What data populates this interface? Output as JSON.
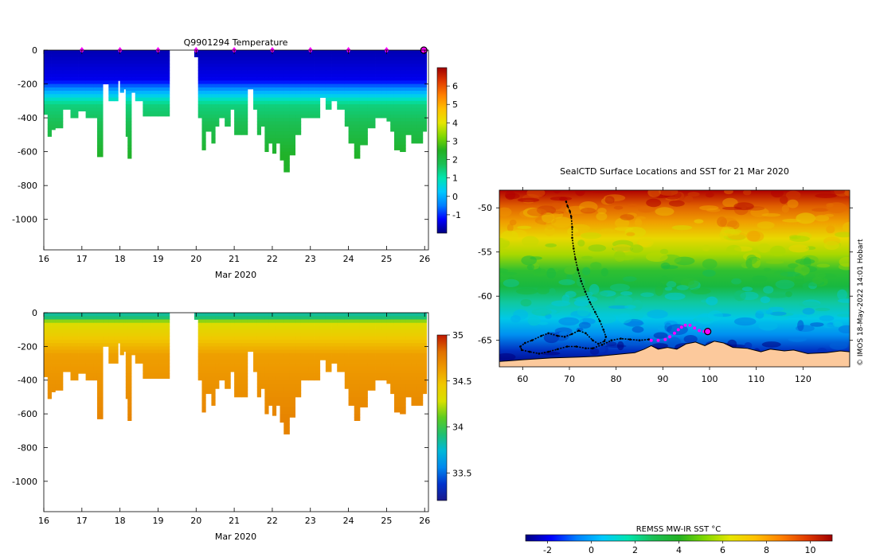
{
  "colors": {
    "background": "#ffffff",
    "land": "#fcc99c",
    "track": "#000000",
    "recent_track": "#ff00ff",
    "marker": "#ff00ff"
  },
  "chart_data": [
    {
      "type": "heatmap",
      "id": "temperature",
      "title": "Q9901294  Temperature",
      "xlabel": "Mar 2020",
      "ylabel": "",
      "xlim": [
        16,
        26.1
      ],
      "ylim": [
        -1180,
        0
      ],
      "xticks": [
        16,
        17,
        18,
        19,
        20,
        21,
        22,
        23,
        24,
        25,
        26
      ],
      "yticks": [
        0,
        -200,
        -400,
        -600,
        -800,
        -1000
      ],
      "variable": "temperature",
      "gap": [
        19.3,
        19.95
      ],
      "marker_days": [
        17,
        18,
        19,
        20,
        21,
        22,
        23,
        24,
        25
      ],
      "latest_marker_day": 26,
      "max_depths": [
        [
          16.0,
          -380
        ],
        [
          16.1,
          -510
        ],
        [
          16.2,
          -470
        ],
        [
          16.3,
          -460
        ],
        [
          16.5,
          -350
        ],
        [
          16.7,
          -400
        ],
        [
          16.9,
          -360
        ],
        [
          17.1,
          -400
        ],
        [
          17.3,
          -400
        ],
        [
          17.4,
          -630
        ],
        [
          17.55,
          -200
        ],
        [
          17.7,
          -300
        ],
        [
          17.85,
          -300
        ],
        [
          17.95,
          -180
        ],
        [
          18.0,
          -250
        ],
        [
          18.1,
          -230
        ],
        [
          18.15,
          -510
        ],
        [
          18.2,
          -640
        ],
        [
          18.3,
          -250
        ],
        [
          18.4,
          -300
        ],
        [
          18.6,
          -390
        ],
        [
          18.8,
          -390
        ],
        [
          19.0,
          -390
        ],
        [
          19.2,
          -390
        ],
        [
          19.95,
          -40
        ],
        [
          20.05,
          -400
        ],
        [
          20.15,
          -590
        ],
        [
          20.25,
          -480
        ],
        [
          20.4,
          -550
        ],
        [
          20.5,
          -450
        ],
        [
          20.6,
          -400
        ],
        [
          20.75,
          -450
        ],
        [
          20.9,
          -350
        ],
        [
          21.0,
          -500
        ],
        [
          21.2,
          -500
        ],
        [
          21.35,
          -230
        ],
        [
          21.5,
          -350
        ],
        [
          21.6,
          -500
        ],
        [
          21.7,
          -450
        ],
        [
          21.8,
          -600
        ],
        [
          21.9,
          -550
        ],
        [
          22.0,
          -610
        ],
        [
          22.1,
          -550
        ],
        [
          22.2,
          -650
        ],
        [
          22.3,
          -720
        ],
        [
          22.45,
          -620
        ],
        [
          22.6,
          -500
        ],
        [
          22.75,
          -400
        ],
        [
          22.95,
          -400
        ],
        [
          23.1,
          -400
        ],
        [
          23.25,
          -280
        ],
        [
          23.4,
          -350
        ],
        [
          23.55,
          -300
        ],
        [
          23.7,
          -350
        ],
        [
          23.9,
          -450
        ],
        [
          24.0,
          -550
        ],
        [
          24.15,
          -640
        ],
        [
          24.3,
          -560
        ],
        [
          24.5,
          -460
        ],
        [
          24.7,
          -400
        ],
        [
          24.85,
          -400
        ],
        [
          25.0,
          -420
        ],
        [
          25.1,
          -480
        ],
        [
          25.2,
          -590
        ],
        [
          25.35,
          -600
        ],
        [
          25.5,
          -500
        ],
        [
          25.65,
          -550
        ],
        [
          25.8,
          -550
        ],
        [
          25.95,
          -480
        ]
      ],
      "colorbar": {
        "min": -2,
        "max": 7,
        "ticks": [
          -1,
          0,
          1,
          2,
          3,
          4,
          5,
          6
        ]
      }
    },
    {
      "type": "heatmap",
      "id": "salinity",
      "title": "",
      "xlabel": "Mar 2020",
      "ylabel": "",
      "xlim": [
        16,
        26.1
      ],
      "ylim": [
        -1180,
        0
      ],
      "xticks": [
        16,
        17,
        18,
        19,
        20,
        21,
        22,
        23,
        24,
        25,
        26
      ],
      "yticks": [
        0,
        -200,
        -400,
        -600,
        -800,
        -1000
      ],
      "variable": "salinity",
      "gap": [
        19.3,
        19.95
      ],
      "colorbar": {
        "min": 33.2,
        "max": 35,
        "ticks": [
          33.5,
          34,
          34.5,
          35
        ]
      }
    },
    {
      "type": "scatter",
      "id": "map",
      "title": "SealCTD Surface Locations and SST for 21 Mar 2020",
      "xlabel": "",
      "ylabel": "",
      "xlim": [
        55,
        130
      ],
      "ylim": [
        -68,
        -48
      ],
      "xticks": [
        60,
        70,
        80,
        90,
        100,
        110,
        120
      ],
      "yticks": [
        -50,
        -55,
        -60,
        -65
      ],
      "track": [
        [
          69.3,
          -49.3
        ],
        [
          69.6,
          -49.8
        ],
        [
          70.1,
          -50.4
        ],
        [
          70.4,
          -51.0
        ],
        [
          70.6,
          -52.2
        ],
        [
          70.6,
          -53.4
        ],
        [
          70.9,
          -54.6
        ],
        [
          71.3,
          -55.8
        ],
        [
          71.8,
          -57.0
        ],
        [
          72.5,
          -58.3
        ],
        [
          73.4,
          -59.5
        ],
        [
          74.4,
          -60.7
        ],
        [
          75.5,
          -61.8
        ],
        [
          76.5,
          -62.8
        ],
        [
          77.3,
          -63.8
        ],
        [
          77.8,
          -64.6
        ],
        [
          77.5,
          -65.1
        ],
        [
          76.2,
          -65.4
        ],
        [
          75.0,
          -65.0
        ],
        [
          73.5,
          -64.2
        ],
        [
          72.0,
          -63.9
        ],
        [
          70.5,
          -64.3
        ],
        [
          69.0,
          -64.6
        ],
        [
          67.5,
          -64.5
        ],
        [
          65.5,
          -64.2
        ],
        [
          64.0,
          -64.5
        ],
        [
          62.0,
          -65.0
        ],
        [
          60.5,
          -65.3
        ],
        [
          59.5,
          -65.7
        ],
        [
          59.8,
          -66.1
        ],
        [
          61.5,
          -66.3
        ],
        [
          63.5,
          -66.5
        ],
        [
          65.5,
          -66.3
        ],
        [
          67.5,
          -66.0
        ],
        [
          69.5,
          -65.7
        ],
        [
          71.5,
          -65.7
        ],
        [
          73.5,
          -65.9
        ],
        [
          75.0,
          -65.9
        ],
        [
          77.0,
          -65.5
        ],
        [
          79.0,
          -65.0
        ],
        [
          81.0,
          -64.8
        ],
        [
          83.0,
          -64.9
        ],
        [
          85.0,
          -65.0
        ],
        [
          87.0,
          -64.9
        ]
      ],
      "recent_track": [
        [
          87.5,
          -65.0
        ],
        [
          89.0,
          -65.0
        ],
        [
          90.5,
          -64.9
        ],
        [
          91.5,
          -64.6
        ],
        [
          92.5,
          -64.2
        ],
        [
          93.3,
          -63.8
        ],
        [
          94.0,
          -63.5
        ],
        [
          94.8,
          -63.3
        ],
        [
          95.8,
          -63.3
        ],
        [
          96.8,
          -63.6
        ],
        [
          97.8,
          -63.9
        ],
        [
          98.8,
          -64.0
        ],
        [
          99.6,
          -64.0
        ]
      ],
      "latest_position": [
        99.6,
        -64.0
      ],
      "coastline": [
        [
          55,
          -67.4
        ],
        [
          60,
          -67.2
        ],
        [
          66,
          -67.0
        ],
        [
          72,
          -66.9
        ],
        [
          76,
          -66.8
        ],
        [
          80,
          -66.6
        ],
        [
          84,
          -66.4
        ],
        [
          86,
          -66.0
        ],
        [
          87.5,
          -65.6
        ],
        [
          89,
          -66.0
        ],
        [
          91,
          -65.8
        ],
        [
          93,
          -66.0
        ],
        [
          95,
          -65.4
        ],
        [
          97,
          -65.2
        ],
        [
          99,
          -65.6
        ],
        [
          101,
          -65.1
        ],
        [
          103,
          -65.3
        ],
        [
          105,
          -65.8
        ],
        [
          108,
          -65.9
        ],
        [
          111,
          -66.3
        ],
        [
          113,
          -66.0
        ],
        [
          116,
          -66.2
        ],
        [
          118,
          -66.1
        ],
        [
          121,
          -66.5
        ],
        [
          125,
          -66.4
        ],
        [
          128,
          -66.2
        ],
        [
          130,
          -66.3
        ]
      ],
      "credit": "© IMOS 18-May-2022 14:01 Hobart",
      "colorbar": {
        "label": "REMSS MW-IR SST °C",
        "min": -3,
        "max": 11,
        "ticks": [
          -2,
          0,
          2,
          4,
          6,
          8,
          10
        ]
      }
    }
  ]
}
